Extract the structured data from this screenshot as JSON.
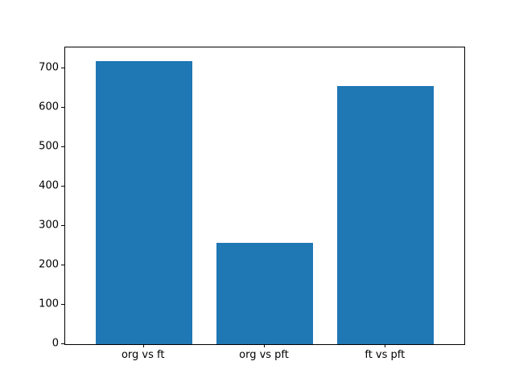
{
  "chart_data": {
    "type": "bar",
    "categories": [
      "org vs ft",
      "org vs pft",
      "ft vs pft"
    ],
    "values": [
      717,
      257,
      655
    ],
    "title": "",
    "xlabel": "",
    "ylabel": "",
    "ylim": [
      0,
      752
    ],
    "yticks": [
      0,
      100,
      200,
      300,
      400,
      500,
      600,
      700
    ],
    "bar_color": "#1f77b4",
    "grid": false,
    "legend": false
  },
  "colors": {
    "background": "#ffffff",
    "axis": "#000000",
    "bar": "#1f77b4"
  }
}
